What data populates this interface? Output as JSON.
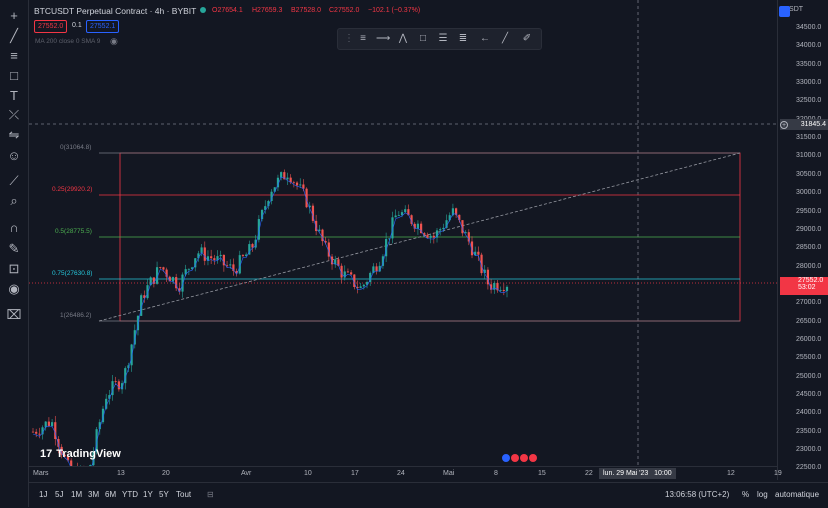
{
  "legend": {
    "symbol": "BTCUSDT Perpetual Contract · 4h · BYBIT",
    "open": "O27654.1",
    "high": "H27659.3",
    "low": "B27528.0",
    "close": "C27552.0",
    "change": "−102.1 (−0.37%)",
    "bid": "27552.0",
    "spread": "0.1",
    "ask": "27552.1",
    "indicator": "MA 200 close 0 SMA 9"
  },
  "price_axis": {
    "currency": "USDT",
    "ticks": [
      "34500.0",
      "34000.0",
      "33500.0",
      "33000.0",
      "32500.0",
      "32000.0",
      "31500.0",
      "31000.0",
      "30500.0",
      "30000.0",
      "29500.0",
      "29000.0",
      "28500.0",
      "28000.0",
      "27500.0",
      "27000.0",
      "26500.0",
      "26000.0",
      "25500.0",
      "25000.0",
      "24500.0",
      "24000.0",
      "23500.0",
      "23000.0",
      "22500.0"
    ],
    "crosshair_label": "31845.4",
    "last_price": "27552.0",
    "countdown": "53:02"
  },
  "time_axis": {
    "ticks": [
      "Mars",
      "13",
      "20",
      "Avr",
      "10",
      "17",
      "24",
      "Mai",
      "8",
      "15",
      "22",
      "12",
      "19"
    ],
    "crosshair_label": "lun. 29 Mai '23   10:00"
  },
  "fib": {
    "levels": [
      {
        "label": "0(31064.8)",
        "color": "#787b86"
      },
      {
        "label": "0.25(29920.2)",
        "color": "#f23645"
      },
      {
        "label": "0.5(28775.5)",
        "color": "#4caf50"
      },
      {
        "label": "0.75(27630.8)",
        "color": "#26c6da"
      },
      {
        "label": "1(26486.2)",
        "color": "#787b86"
      }
    ]
  },
  "watermark": "TradingView",
  "bottom": {
    "timeframes": [
      "1J",
      "5J",
      "1M",
      "3M",
      "6M",
      "YTD",
      "1Y",
      "5Y",
      "Tout"
    ],
    "clock": "13:06:58 (UTC+2)",
    "percent": "%",
    "log": "log",
    "auto": "automatique"
  },
  "chart_data": {
    "type": "candlestick",
    "symbol": "BTCUSDT",
    "interval": "4h",
    "ylim": [
      22300,
      34800
    ],
    "fib_levels": [
      31064.8,
      29920.2,
      28775.5,
      27630.8,
      26486.2
    ],
    "last_price": 27552.0,
    "crosshair_price": 31845.4,
    "series_path_approx": [
      [
        "Mars",
        23500
      ],
      [
        "08",
        23800
      ],
      [
        "10",
        22400
      ],
      [
        "12",
        22300
      ],
      [
        "13",
        24500
      ],
      [
        "15",
        25000
      ],
      [
        "17",
        27200
      ],
      [
        "20",
        28000
      ],
      [
        "24",
        27500
      ],
      [
        "Avr",
        28400
      ],
      [
        "03",
        28200
      ],
      [
        "07",
        27900
      ],
      [
        "10",
        28500
      ],
      [
        "12",
        30100
      ],
      [
        "14",
        30600
      ],
      [
        "17",
        29800
      ],
      [
        "19",
        28500
      ],
      [
        "21",
        27800
      ],
      [
        "24",
        27400
      ],
      [
        "26",
        28200
      ],
      [
        "27",
        29500
      ],
      [
        "Mai",
        29200
      ],
      [
        "03",
        28800
      ],
      [
        "06",
        29500
      ],
      [
        "07",
        28600
      ],
      [
        "10",
        27500
      ],
      [
        "11",
        27552
      ]
    ]
  }
}
